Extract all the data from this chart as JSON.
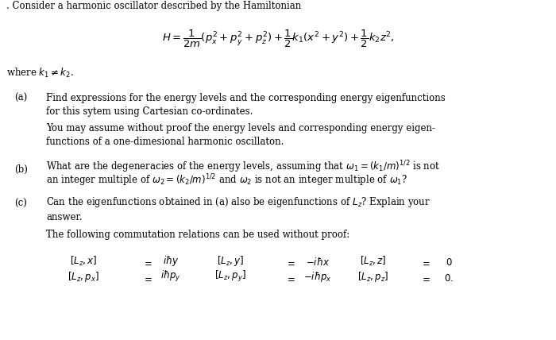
{
  "background_color": "#ffffff",
  "text_color": "#000000",
  "title_line": ". Consider a harmonic oscillator described by the Hamiltonian",
  "hamiltonian": "$H = \\dfrac{1}{2m}(p_x^2 + p_y^2 + p_z^2) + \\dfrac{1}{2}k_1(x^2 + y^2) + \\dfrac{1}{2}k_2 z^2,$",
  "where_line": "where $k_1 \\neq k_2$.",
  "part_a_label": "(a)",
  "part_a_text1": "Find expressions for the energy levels and the corresponding energy eigenfunctions",
  "part_a_text2": "for this sytem using Cartesian co-ordinates.",
  "part_a_text3": "You may assume without proof the energy levels and corresponding energy eigen-",
  "part_a_text4": "functions of a one-dimesional harmonic oscillaton.",
  "part_b_label": "(b)",
  "part_b_text1": "What are the degeneracies of the energy levels, assuming that $\\omega_1 = (k_1/m)^{1/2}$ is not",
  "part_b_text2": "an integer multiple of $\\omega_2 = (k_2/m)^{1/2}$ and $\\omega_2$ is not an integer multiple of $\\omega_1$?",
  "part_c_label": "(c)",
  "part_c_text1": "Can the eigenfunctions obtained in (a) also be eigenfunctions of $L_z$? Explain your",
  "part_c_text2": "answer.",
  "commutation_intro": "The following commutation relations can be used without proof:",
  "comm_row1": [
    "$[L_z, x]$",
    "$=$",
    "$i\\hbar y$",
    "$[L_z, y]$",
    "$=$",
    "$-i\\hbar x$",
    "$[L_z, z]$",
    "$=$",
    "$0$"
  ],
  "comm_row2": [
    "$[L_z, p_x]$",
    "$=$",
    "$i\\hbar p_y$",
    "$[L_z, p_y]$",
    "$=$",
    "$-i\\hbar p_x$",
    "$[L_z, p_z]$",
    "$=$",
    "$0.$"
  ],
  "fs": 8.5,
  "fs_math": 9.0,
  "fs_hamiltonian": 9.5
}
